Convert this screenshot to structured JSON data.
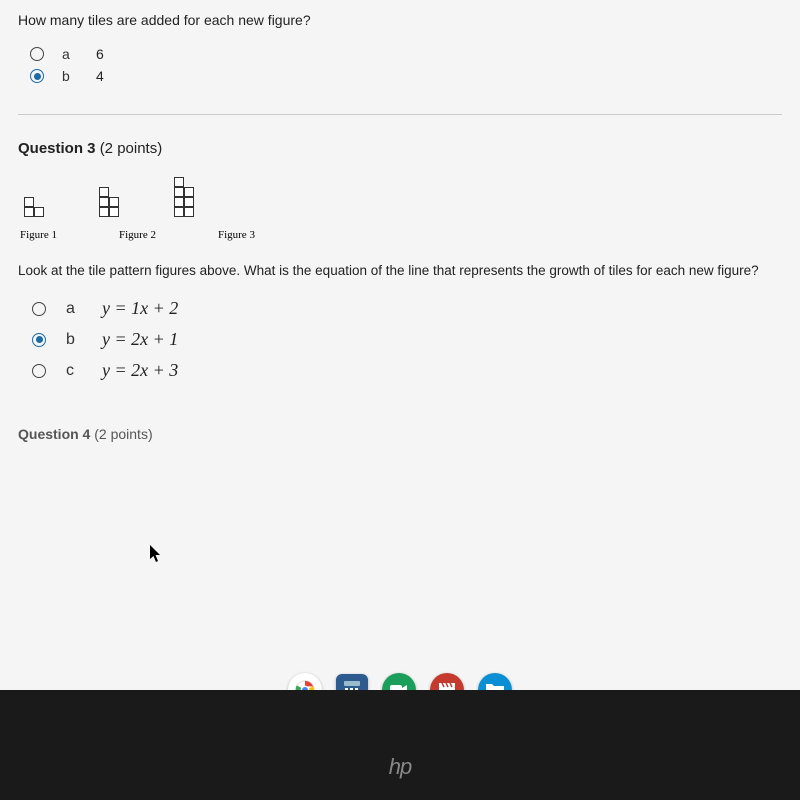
{
  "question2": {
    "prompt": "How many tiles are added for each new figure?",
    "options": [
      {
        "letter": "a",
        "value": "6",
        "selected": false
      },
      {
        "letter": "b",
        "value": "4",
        "selected": true
      }
    ]
  },
  "question3": {
    "header_bold": "Question 3",
    "header_points": "(2 points)",
    "figures": [
      {
        "label": "Figure 1",
        "rows": [
          [
            1,
            0
          ],
          [
            1,
            1
          ]
        ]
      },
      {
        "label": "Figure 2",
        "rows": [
          [
            1,
            0
          ],
          [
            1,
            1
          ],
          [
            1,
            1
          ]
        ]
      },
      {
        "label": "Figure 3",
        "rows": [
          [
            1,
            0
          ],
          [
            1,
            1
          ],
          [
            1,
            1
          ],
          [
            1,
            1
          ]
        ]
      }
    ],
    "prompt": "Look at the tile pattern figures above.  What is the equation of the line that represents the growth of tiles for each new figure?",
    "options": [
      {
        "letter": "a",
        "equation": "y = 1x + 2",
        "selected": false
      },
      {
        "letter": "b",
        "equation": "y = 2x + 1",
        "selected": true
      },
      {
        "letter": "c",
        "equation": "y = 2x + 3",
        "selected": false
      }
    ]
  },
  "question4": {
    "header_bold": "Question 4",
    "header_points": "(2 points)"
  },
  "hp": "hp",
  "colors": {
    "selected_radio": "#1a6ca8",
    "text": "#222222",
    "divider": "#cccccc",
    "bezel": "#1a1a1a"
  }
}
